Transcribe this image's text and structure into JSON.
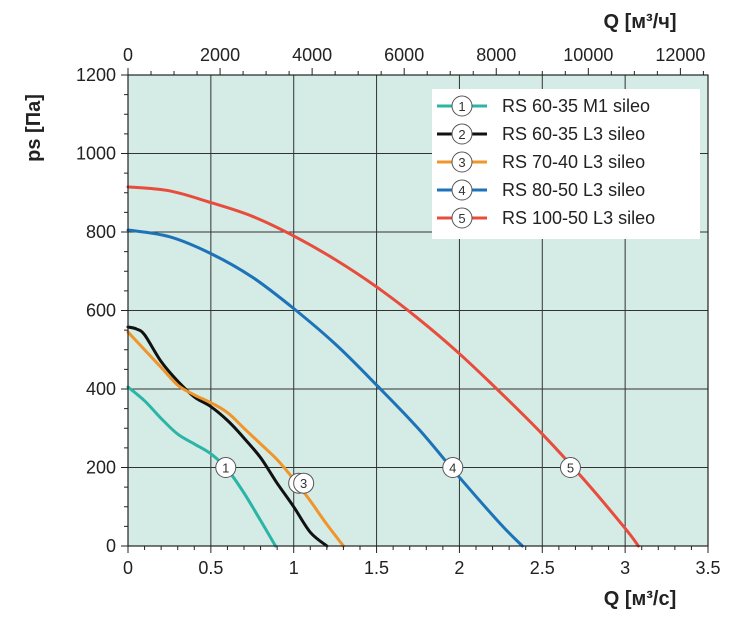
{
  "chart_data": {
    "type": "line",
    "xlabel": "Q [м³/с]",
    "x2label": "Q [м³/ч]",
    "ylabel": "ps [Па]",
    "xlim": [
      0,
      3.5
    ],
    "x2lim": [
      0,
      12600
    ],
    "ylim": [
      0,
      1200
    ],
    "x_ticks": [
      "0",
      "0.5",
      "1",
      "1.5",
      "2",
      "2.5",
      "3",
      "3.5"
    ],
    "x_tick_values": [
      0,
      0.5,
      1,
      1.5,
      2,
      2.5,
      3,
      3.5
    ],
    "x2_ticks": [
      "0",
      "2000",
      "4000",
      "6000",
      "8000",
      "10000",
      "12000"
    ],
    "x2_tick_values": [
      0,
      2000,
      4000,
      6000,
      8000,
      10000,
      12000
    ],
    "y_ticks": [
      "0",
      "200",
      "400",
      "600",
      "800",
      "1000",
      "1200"
    ],
    "y_tick_values": [
      0,
      200,
      400,
      600,
      800,
      1000,
      1200
    ],
    "grid": true,
    "legend_position": "top-right",
    "colors": {
      "plot_background": "#d4ebe6",
      "grid": "#333333",
      "axis": "#222222"
    },
    "series": [
      {
        "name": "RS 60-35 M1 sileo",
        "marker": "1",
        "color": "#2bb5a6",
        "x": [
          0,
          0.1,
          0.2,
          0.3,
          0.4,
          0.5,
          0.6,
          0.7,
          0.8,
          0.89
        ],
        "y": [
          405,
          370,
          325,
          285,
          260,
          235,
          195,
          135,
          65,
          0
        ],
        "marker_at": [
          0.59,
          200
        ]
      },
      {
        "name": "RS 60-35 L3 sileo",
        "marker": "2",
        "color": "#111111",
        "x": [
          0,
          0.05,
          0.1,
          0.2,
          0.3,
          0.4,
          0.5,
          0.6,
          0.7,
          0.8,
          0.9,
          1.0,
          1.1,
          1.2
        ],
        "y": [
          558,
          553,
          538,
          470,
          420,
          380,
          355,
          320,
          275,
          225,
          160,
          100,
          35,
          0
        ],
        "marker_at": [
          1.03,
          160
        ]
      },
      {
        "name": "RS 70-40 L3 sileo",
        "marker": "3",
        "color": "#f0952a",
        "x": [
          0,
          0.1,
          0.2,
          0.3,
          0.4,
          0.5,
          0.6,
          0.7,
          0.8,
          0.9,
          1.0,
          1.1,
          1.2,
          1.3
        ],
        "y": [
          545,
          500,
          455,
          410,
          385,
          365,
          340,
          300,
          260,
          220,
          170,
          115,
          55,
          0
        ],
        "marker_at": [
          1.06,
          160
        ]
      },
      {
        "name": "RS 80-50 L3 sileo",
        "marker": "4",
        "color": "#1d72b8",
        "x": [
          0,
          0.25,
          0.5,
          0.75,
          1.0,
          1.25,
          1.5,
          1.75,
          2.0,
          2.25,
          2.38
        ],
        "y": [
          805,
          788,
          745,
          685,
          605,
          515,
          410,
          300,
          175,
          55,
          0
        ],
        "marker_at": [
          1.96,
          200
        ]
      },
      {
        "name": "RS 100-50 L3 sileo",
        "marker": "5",
        "color": "#e84c3d",
        "x": [
          0,
          0.25,
          0.5,
          0.75,
          1.0,
          1.25,
          1.5,
          1.75,
          2.0,
          2.25,
          2.5,
          2.75,
          3.0,
          3.08
        ],
        "y": [
          915,
          905,
          875,
          840,
          790,
          730,
          660,
          580,
          490,
          390,
          285,
          170,
          45,
          0
        ],
        "marker_at": [
          2.67,
          200
        ]
      }
    ]
  }
}
